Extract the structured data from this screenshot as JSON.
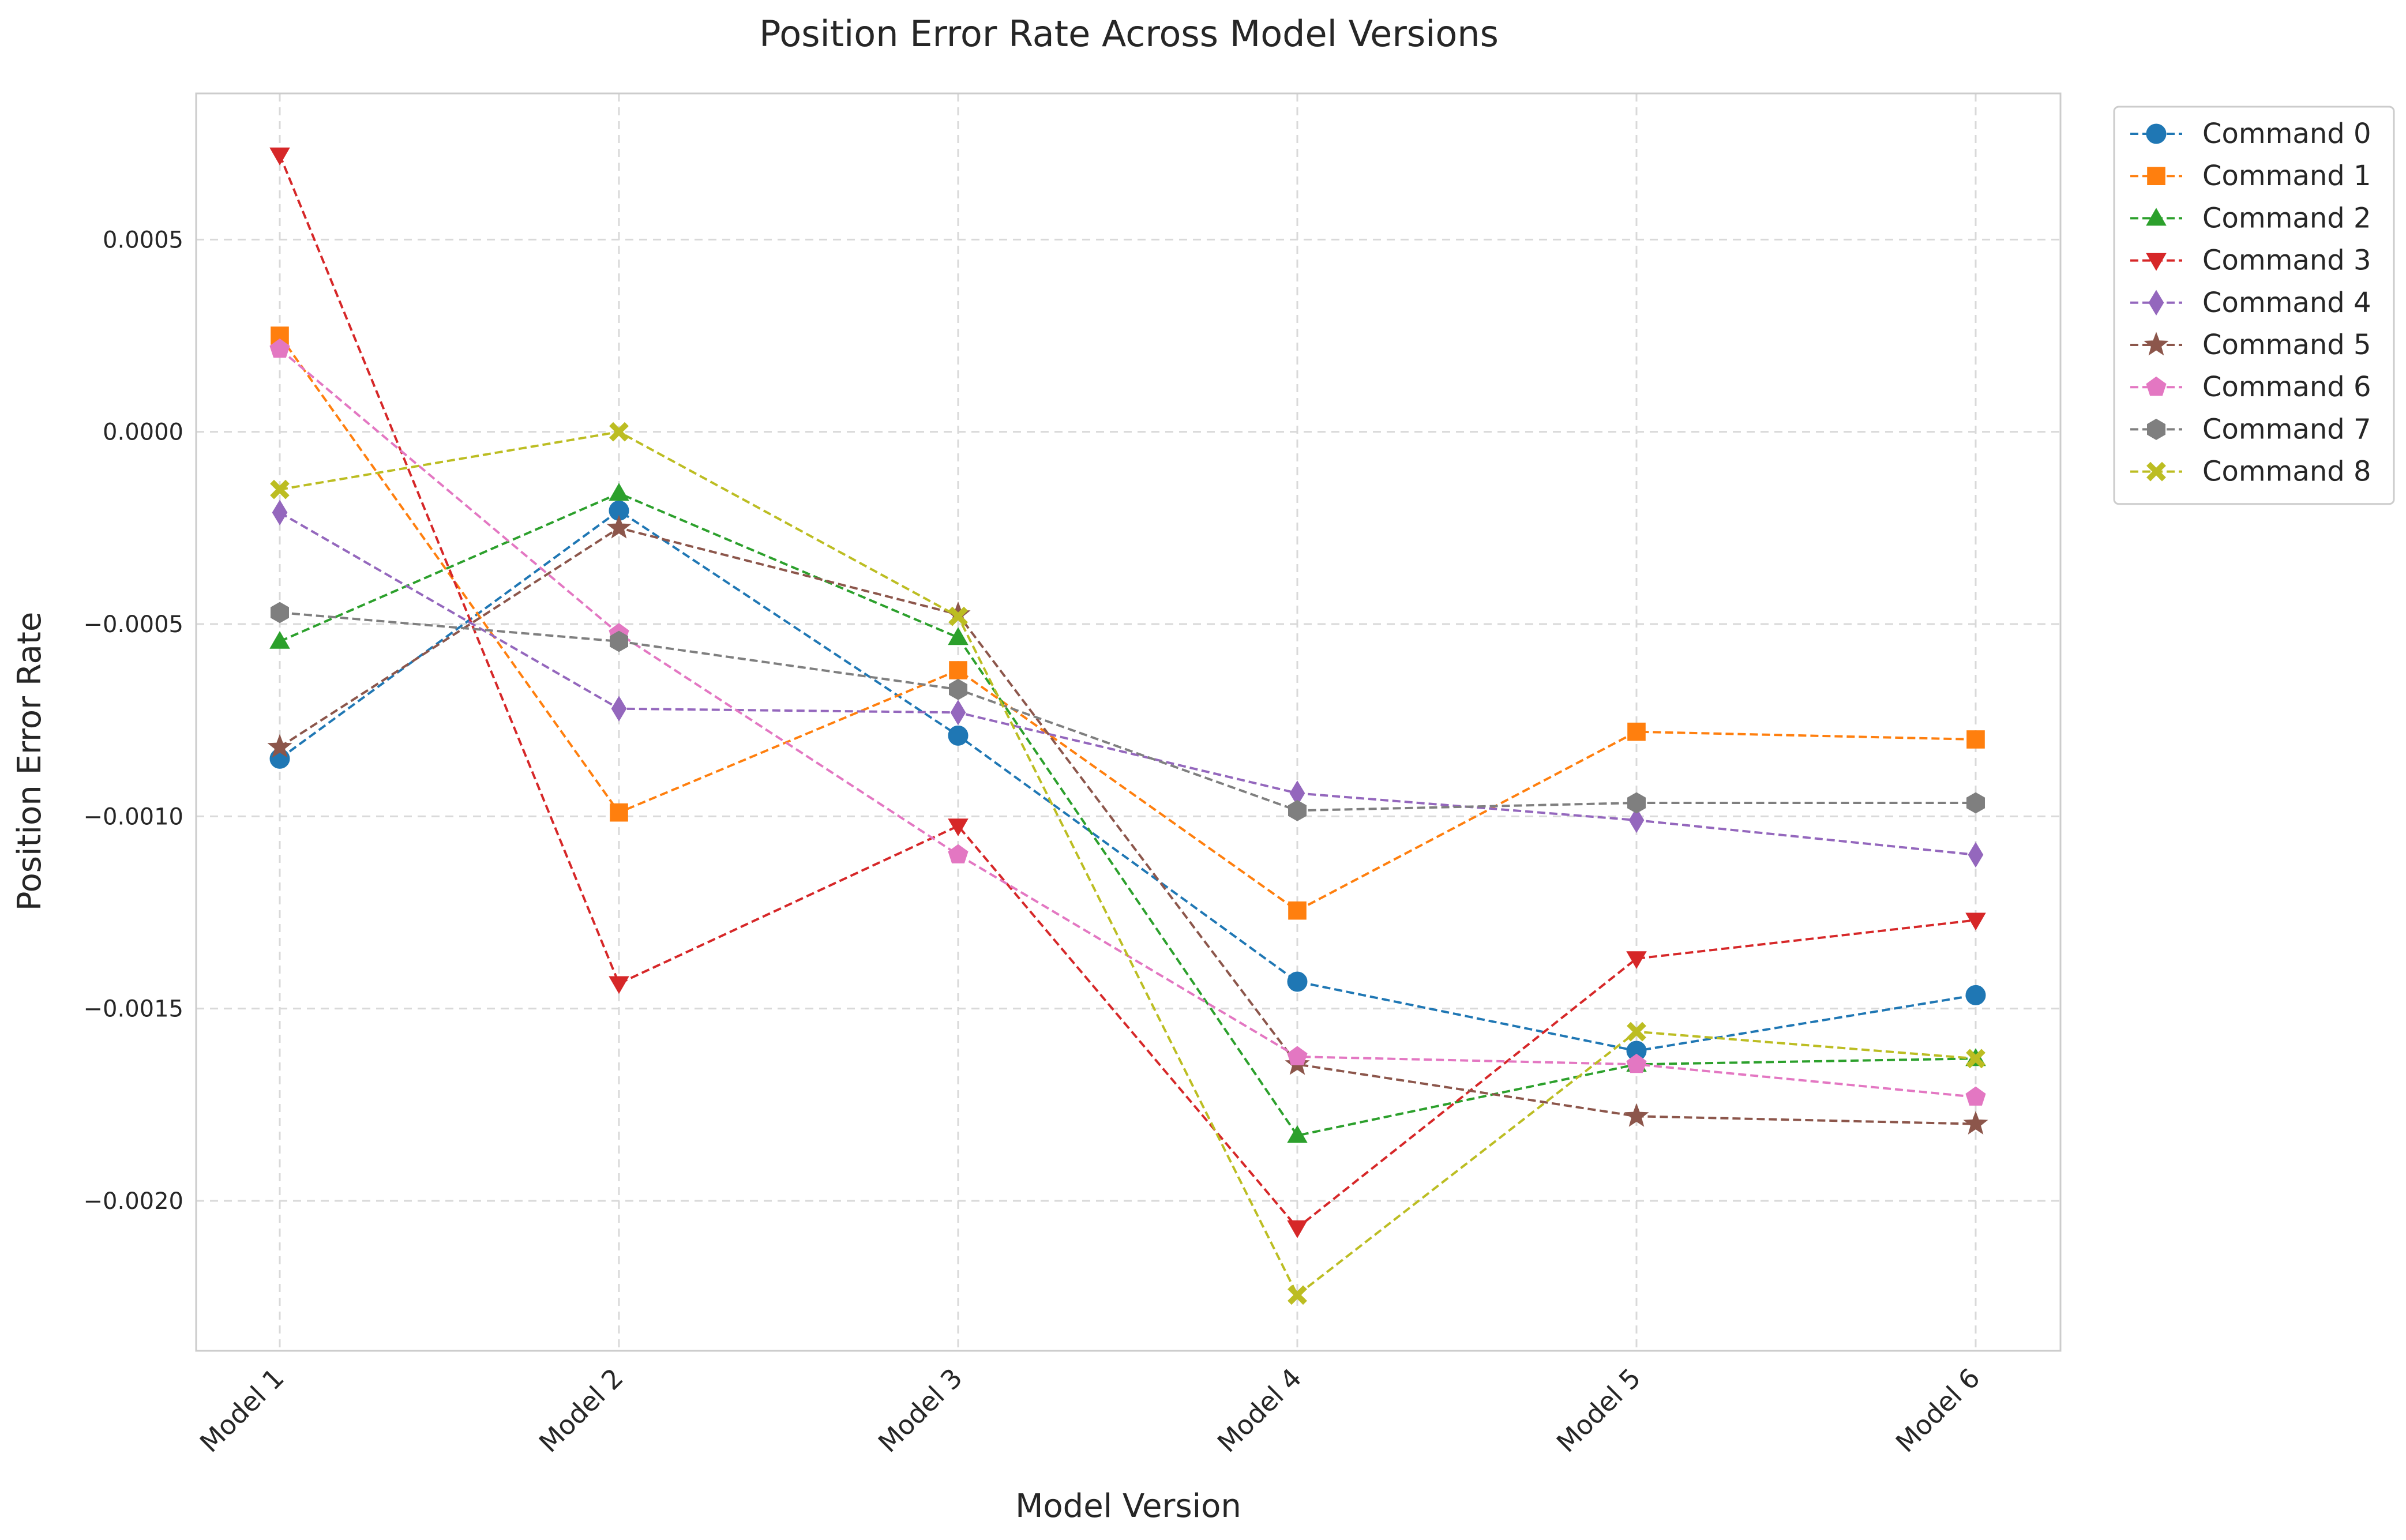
{
  "chart_data": {
    "type": "line",
    "title": "Position Error Rate Across Model Versions",
    "xlabel": "Model Version",
    "ylabel": "Position Error Rate",
    "categories": [
      "Model 1",
      "Model 2",
      "Model 3",
      "Model 4",
      "Model 5",
      "Model 6"
    ],
    "ylim": [
      -0.00239,
      0.00088
    ],
    "yticks": [
      -0.002,
      -0.0015,
      -0.001,
      -0.0005,
      0.0,
      0.0005
    ],
    "ytick_labels": [
      "−0.0020",
      "−0.0015",
      "−0.0010",
      "−0.0005",
      "0.0000",
      "0.0005"
    ],
    "grid": true,
    "line_style": "dashed",
    "legend_position": "outside-top-right",
    "series": [
      {
        "name": "Command 0",
        "color": "#1f77b4",
        "marker": "circle",
        "values": [
          -0.00085,
          -0.000205,
          -0.00079,
          -0.00143,
          -0.00161,
          -0.001465
        ]
      },
      {
        "name": "Command 1",
        "color": "#ff7f0e",
        "marker": "square",
        "values": [
          0.00025,
          -0.00099,
          -0.00062,
          -0.001245,
          -0.00078,
          -0.0008
        ]
      },
      {
        "name": "Command 2",
        "color": "#2ca02c",
        "marker": "triangle-up",
        "values": [
          -0.000545,
          -0.00016,
          -0.000535,
          -0.00183,
          -0.001645,
          -0.00163
        ]
      },
      {
        "name": "Command 3",
        "color": "#d62728",
        "marker": "triangle-down",
        "values": [
          0.00072,
          -0.001435,
          -0.001025,
          -0.00207,
          -0.00137,
          -0.00127
        ]
      },
      {
        "name": "Command 4",
        "color": "#9467bd",
        "marker": "diamond",
        "values": [
          -0.00021,
          -0.00072,
          -0.00073,
          -0.00094,
          -0.00101,
          -0.0011
        ]
      },
      {
        "name": "Command 5",
        "color": "#8c564b",
        "marker": "star",
        "values": [
          -0.00082,
          -0.00025,
          -0.000475,
          -0.001645,
          -0.00178,
          -0.0018
        ]
      },
      {
        "name": "Command 6",
        "color": "#e377c2",
        "marker": "pentagon",
        "values": [
          0.000215,
          -0.000525,
          -0.0011,
          -0.001625,
          -0.001645,
          -0.00173
        ]
      },
      {
        "name": "Command 7",
        "color": "#7f7f7f",
        "marker": "hexagon",
        "values": [
          -0.00047,
          -0.000545,
          -0.00067,
          -0.000985,
          -0.000965,
          -0.000965
        ]
      },
      {
        "name": "Command 8",
        "color": "#bcbd22",
        "marker": "x-filled",
        "values": [
          -0.00015,
          0.0,
          -0.00048,
          -0.002245,
          -0.00156,
          -0.00163
        ]
      }
    ]
  }
}
